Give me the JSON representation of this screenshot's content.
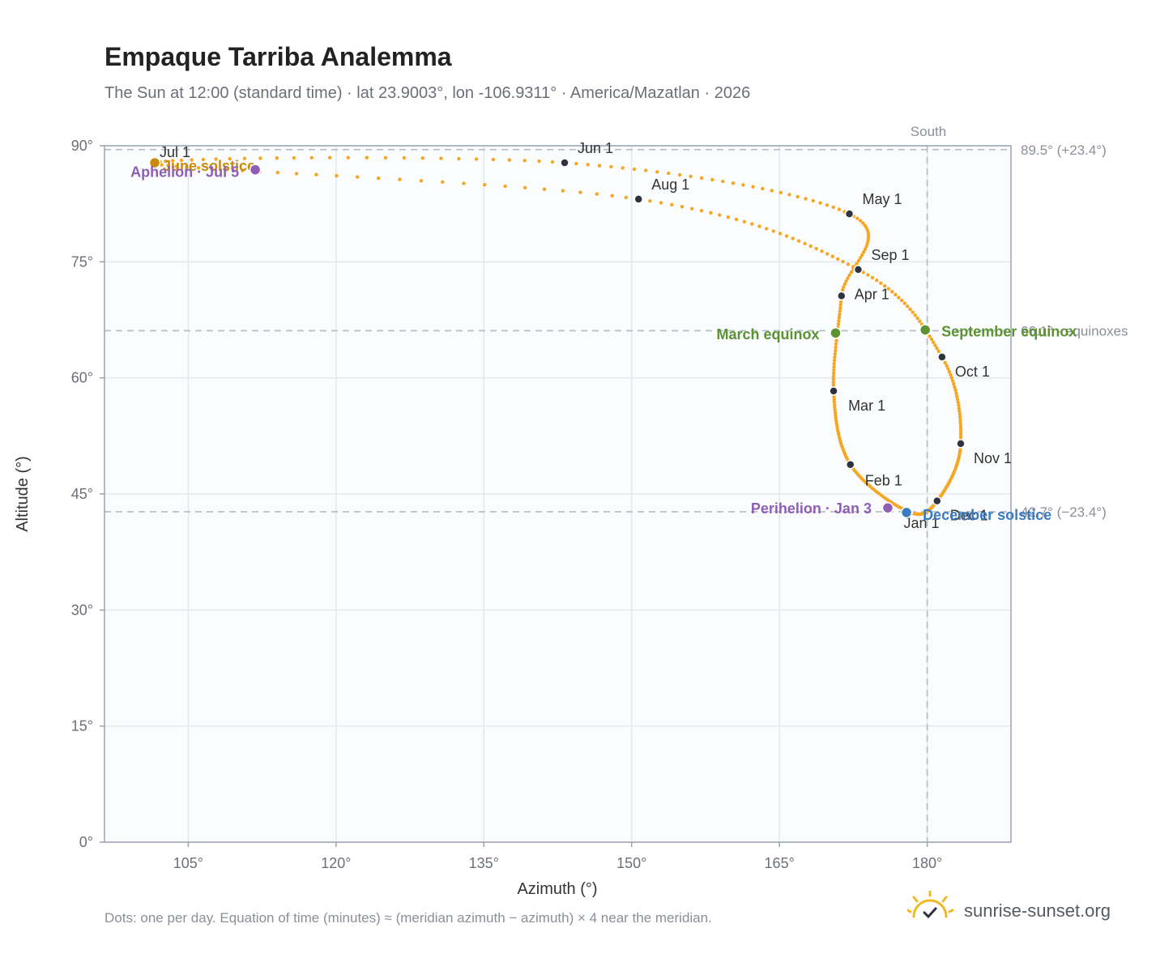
{
  "title": "Empaque Tarriba Analemma",
  "subtitle": "The Sun at 12:00 (standard time) · lat 23.9003°, lon -106.9311° · America/Mazatlan · 2026",
  "footnote": "Dots: one per day. Equation of time (minutes) ≈ (meridian azimuth − azimuth) × 4 near the meridian.",
  "brand": {
    "name": "sunrise-sunset.org",
    "icon": "sun-check-icon"
  },
  "colors": {
    "curve": "#f5a623",
    "month_dot": "#2d3440",
    "equinox": "#5b9332",
    "solstice_dec": "#3a7bbf",
    "solstice_jun": "#c98a0a",
    "apsis": "#8e5fb5",
    "reference": "#b8bec7",
    "plot_bg": "#fafcfe"
  },
  "chart_data": {
    "type": "scatter",
    "xlabel": "Azimuth (°)",
    "ylabel": "Altitude (°)",
    "xlim": [
      96.5,
      188.5
    ],
    "ylim": [
      0,
      90
    ],
    "x_ticks": [
      105,
      120,
      135,
      150,
      165,
      180
    ],
    "x_tick_labels": [
      "105°",
      "120°",
      "135°",
      "150°",
      "165°",
      "180°"
    ],
    "y_ticks": [
      0,
      15,
      30,
      45,
      60,
      75,
      90
    ],
    "y_tick_labels": [
      "0°",
      "15°",
      "30°",
      "45°",
      "60°",
      "75°",
      "90°"
    ],
    "grid": true,
    "meridian": {
      "azimuth": 180,
      "label": "South"
    },
    "reference_lines": [
      {
        "altitude": 89.5,
        "label": "89.5° (+23.4°)"
      },
      {
        "altitude": 66.1,
        "label": "66.1° · equinoxes"
      },
      {
        "altitude": 42.7,
        "label": "42.7° (−23.4°)"
      }
    ],
    "month_markers": [
      {
        "label": "Jan 1",
        "azimuth": 178.1,
        "altitude": 42.7
      },
      {
        "label": "Feb 1",
        "azimuth": 172.2,
        "altitude": 48.8
      },
      {
        "label": "Mar 1",
        "azimuth": 170.5,
        "altitude": 58.3
      },
      {
        "label": "Apr 1",
        "azimuth": 171.3,
        "altitude": 70.6
      },
      {
        "label": "May 1",
        "azimuth": 172.1,
        "altitude": 81.2
      },
      {
        "label": "Jun 1",
        "azimuth": 143.2,
        "altitude": 87.8
      },
      {
        "label": "Jul 1",
        "azimuth": 101.6,
        "altitude": 87.7
      },
      {
        "label": "Aug 1",
        "azimuth": 150.7,
        "altitude": 83.1
      },
      {
        "label": "Sep 1",
        "azimuth": 173.0,
        "altitude": 74.0
      },
      {
        "label": "Oct 1",
        "azimuth": 181.5,
        "altitude": 62.7
      },
      {
        "label": "Nov 1",
        "azimuth": 183.4,
        "altitude": 51.5
      },
      {
        "label": "Dec 1",
        "azimuth": 181.0,
        "altitude": 44.1
      }
    ],
    "events": [
      {
        "label": "March equinox",
        "azimuth": 170.7,
        "altitude": 65.8,
        "kind": "equinox"
      },
      {
        "label": "September equinox",
        "azimuth": 179.8,
        "altitude": 66.2,
        "kind": "equinox"
      },
      {
        "label": "June solstice",
        "azimuth": 101.6,
        "altitude": 87.8,
        "kind": "solstice_jun"
      },
      {
        "label": "December solstice",
        "azimuth": 177.9,
        "altitude": 42.6,
        "kind": "solstice_dec"
      },
      {
        "label": "Perihelion · Jan 3",
        "azimuth": 176.0,
        "altitude": 43.2,
        "kind": "apsis"
      },
      {
        "label": "Aphelion · Jul 5",
        "azimuth": 111.8,
        "altitude": 86.9,
        "kind": "apsis"
      }
    ]
  }
}
